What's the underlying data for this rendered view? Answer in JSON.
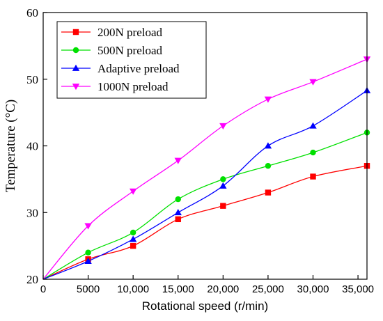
{
  "chart_data": {
    "type": "line",
    "xlabel": "Rotational speed (r/min)",
    "ylabel": "Temperature (°C)",
    "xlim": [
      0,
      36000
    ],
    "ylim": [
      20,
      60
    ],
    "x_ticks": [
      0,
      5000,
      10000,
      15000,
      20000,
      25000,
      30000,
      35000
    ],
    "x_tick_labels": [
      "0",
      "5000",
      "10,000",
      "15,000",
      "20,000",
      "25,000",
      "30,000",
      "35,000"
    ],
    "y_ticks": [
      20,
      30,
      40,
      50,
      60
    ],
    "y_tick_labels": [
      "20",
      "30",
      "40",
      "50",
      "60"
    ],
    "grid": false,
    "legend_position": "top-left",
    "x": [
      0,
      5000,
      10000,
      15000,
      20000,
      25000,
      30000,
      36000
    ],
    "series": [
      {
        "name": "200N preload",
        "color": "#ff0000",
        "marker": "square",
        "values": [
          20,
          23,
          25,
          29,
          31,
          33,
          35.4,
          37
        ]
      },
      {
        "name": "500N preload",
        "color": "#00e000",
        "marker": "circle",
        "values": [
          20,
          24,
          27,
          32,
          35,
          37,
          39,
          42
        ]
      },
      {
        "name": "Adaptive preload",
        "color": "#0000ff",
        "marker": "triangle-up",
        "values": [
          20,
          22.7,
          26,
          30,
          34,
          40,
          43,
          48.3
        ]
      },
      {
        "name": "1000N preload",
        "color": "#ff00ff",
        "marker": "triangle-down",
        "values": [
          20,
          28,
          33.2,
          37.8,
          43,
          47,
          49.6,
          53
        ]
      }
    ]
  }
}
